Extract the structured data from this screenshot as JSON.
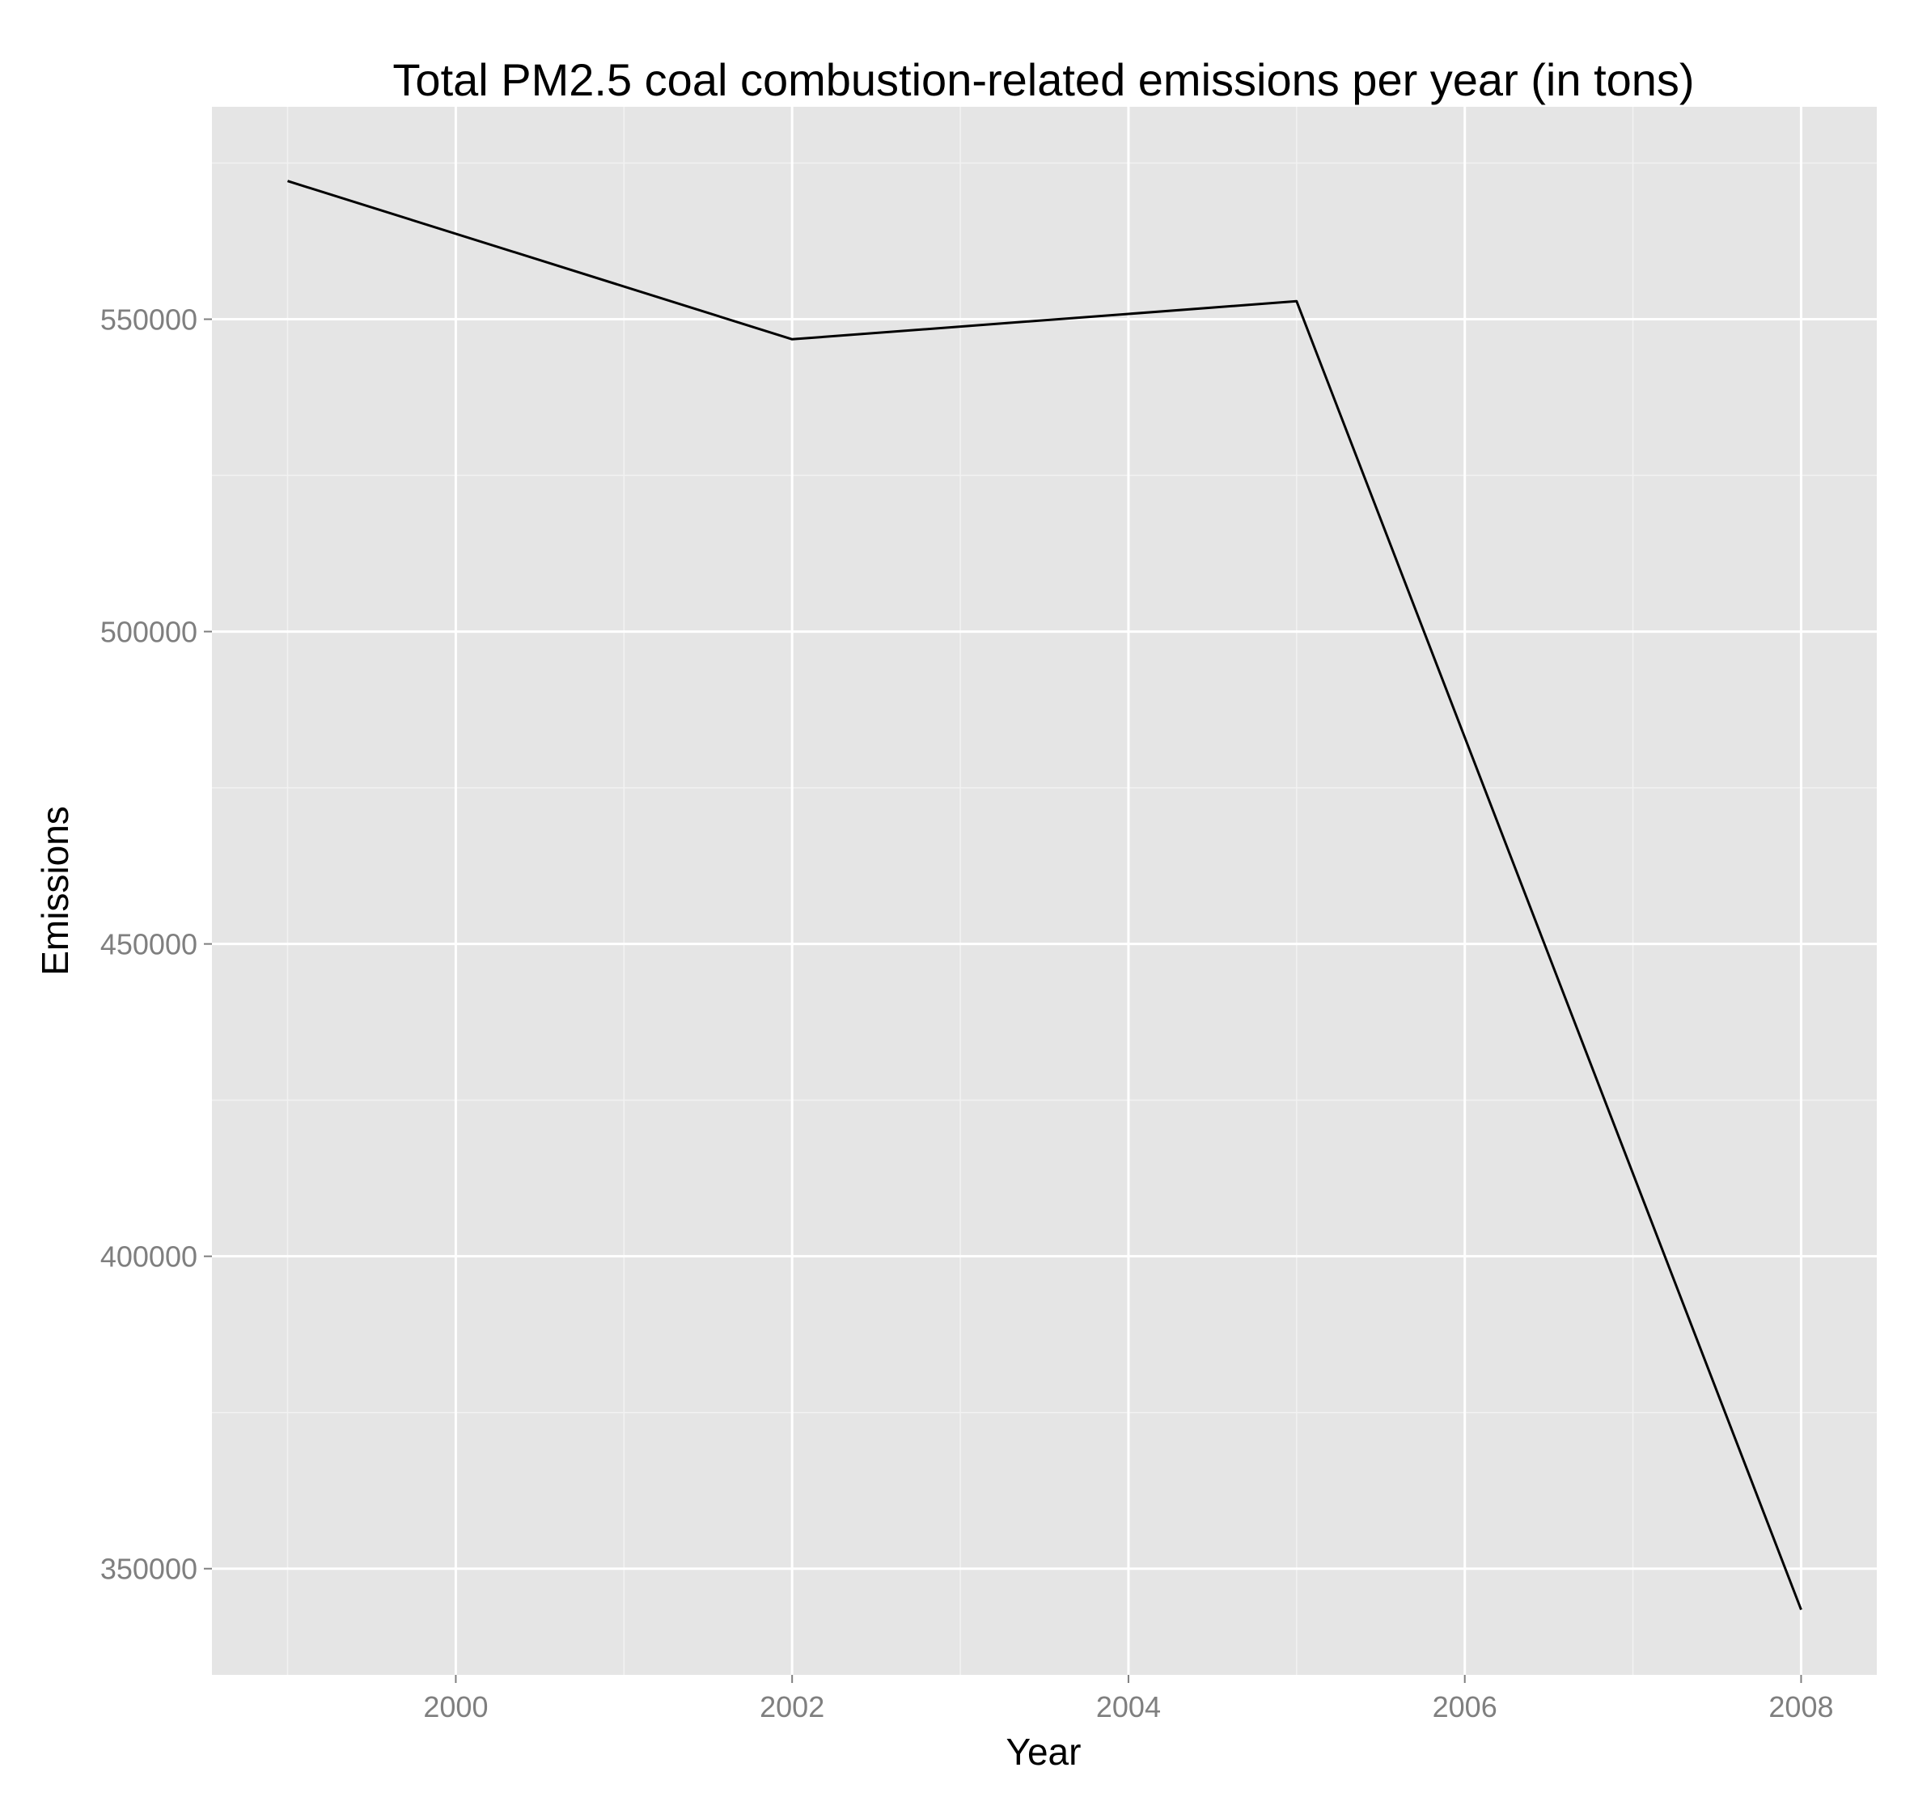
{
  "chart_data": {
    "type": "line",
    "title": "Total PM2.5 coal combustion-related emissions per year (in tons)",
    "xlabel": "Year",
    "ylabel": "Emissions",
    "x": [
      1999,
      2002,
      2005,
      2008
    ],
    "values": [
      572126,
      546789,
      552881,
      343432
    ],
    "xlim": [
      1998.55,
      2008.45
    ],
    "ylim": [
      333000,
      584000
    ],
    "x_ticks": [
      "2000",
      "2002",
      "2004",
      "2006",
      "2008"
    ],
    "y_ticks": [
      "350000",
      "400000",
      "450000",
      "500000",
      "550000"
    ],
    "grid": true,
    "legend": "none",
    "colors": {
      "panel": "#e5e5e5",
      "grid_major": "#ffffff",
      "grid_minor": "#f2f2f2",
      "line": "#000000",
      "tick_text": "#7f7f7f"
    }
  }
}
